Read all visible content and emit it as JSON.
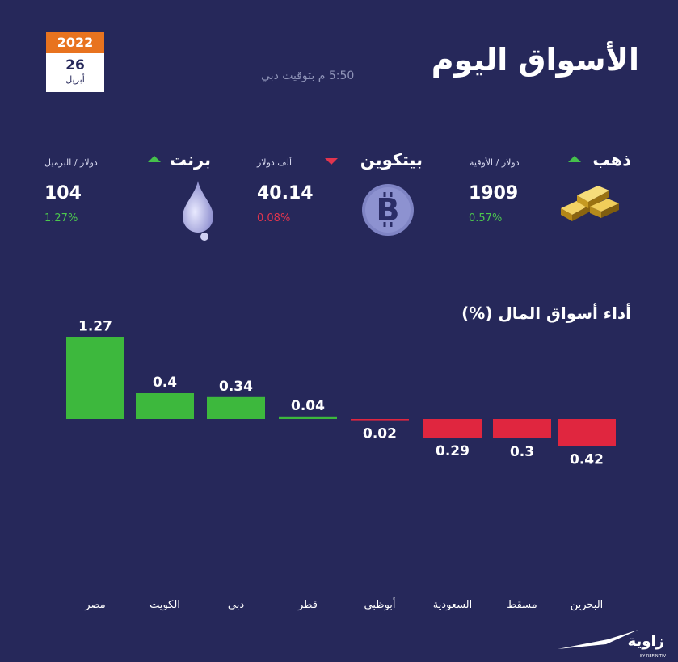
{
  "header": {
    "title": "الأسواق اليوم",
    "timestamp": "5:50 م بتوقيت دبي",
    "date": {
      "year": "2022",
      "day": "26",
      "month": "أبريل"
    }
  },
  "assets": {
    "gold": {
      "name": "ذهب",
      "unit": "دولار / الأوقية",
      "price": "1909",
      "change": "0.57%",
      "direction": "up",
      "icon": "gold-bars-icon"
    },
    "bitcoin": {
      "name": "بيتكوين",
      "unit": "ألف دولار",
      "price": "40.14",
      "change": "0.08%",
      "direction": "down",
      "icon": "bitcoin-icon"
    },
    "brent": {
      "name": "برنت",
      "unit": "دولار / البرميل",
      "price": "104",
      "change": "1.27%",
      "direction": "up",
      "icon": "oil-drop-icon"
    }
  },
  "chart_data": {
    "type": "bar",
    "title": "أداء أسواق المال (%)",
    "categories": [
      "مصر",
      "الكويت",
      "دبي",
      "قطر",
      "أبوظبي",
      "السعودية",
      "مسقط",
      "البحرين"
    ],
    "values": [
      1.27,
      0.4,
      0.34,
      0.04,
      -0.02,
      -0.29,
      -0.3,
      -0.42
    ],
    "labels": [
      "1.27",
      "0.4",
      "0.34",
      "0.04",
      "0.02",
      "0.29",
      "0.3",
      "0.42"
    ],
    "colors": {
      "positive": "#3db83d",
      "negative": "#e0263f"
    }
  },
  "countries": [
    {
      "name": "مصر",
      "flag": "egypt-flag-icon"
    },
    {
      "name": "الكويت",
      "flag": "kuwait-flag-icon"
    },
    {
      "name": "دبي",
      "flag": "uae-flag-icon"
    },
    {
      "name": "قطر",
      "flag": "qatar-flag-icon"
    },
    {
      "name": "أبوظبي",
      "flag": "uae-flag-icon"
    },
    {
      "name": "السعودية",
      "flag": "saudi-flag-icon"
    },
    {
      "name": "مسقط",
      "flag": "oman-flag-icon"
    },
    {
      "name": "البحرين",
      "flag": "bahrain-flag-icon"
    }
  ],
  "logo": {
    "text": "زاوية",
    "subtext": "BY REFINITIV"
  }
}
